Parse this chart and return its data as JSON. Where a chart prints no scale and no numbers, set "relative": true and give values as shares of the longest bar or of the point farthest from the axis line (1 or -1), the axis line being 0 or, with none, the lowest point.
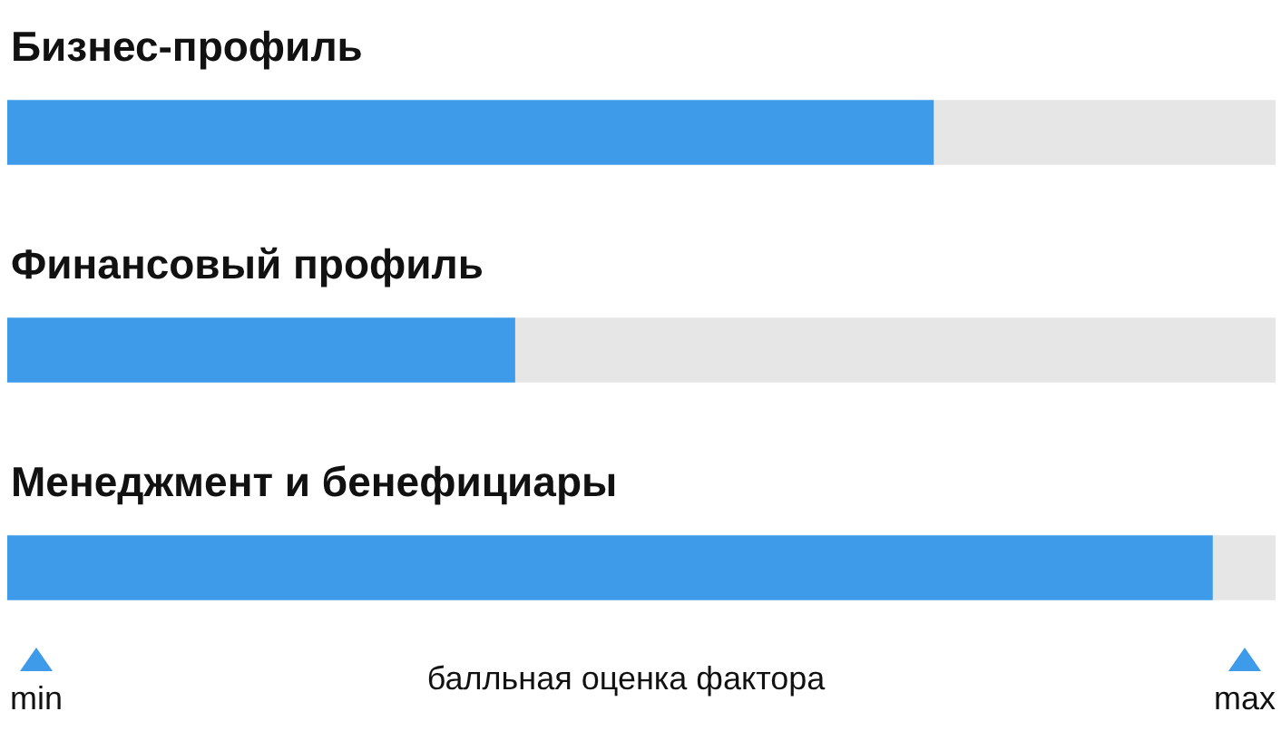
{
  "chart_data": {
    "type": "bar",
    "orientation": "horizontal",
    "stacked": true,
    "relative": true,
    "categories": [
      "Бизнес-профиль",
      "Финансовый профиль",
      "Менеджмент и бенефициары"
    ],
    "series": [
      {
        "color": "#3d9be9",
        "values": [
          0.73,
          0.4,
          0.95
        ]
      },
      {
        "color": "#e6e6e6",
        "values": [
          0.27,
          0.6,
          0.05
        ]
      }
    ],
    "xlabel": "балльная оценка фактора",
    "annotations": [
      "min",
      "max"
    ],
    "legend": false
  }
}
